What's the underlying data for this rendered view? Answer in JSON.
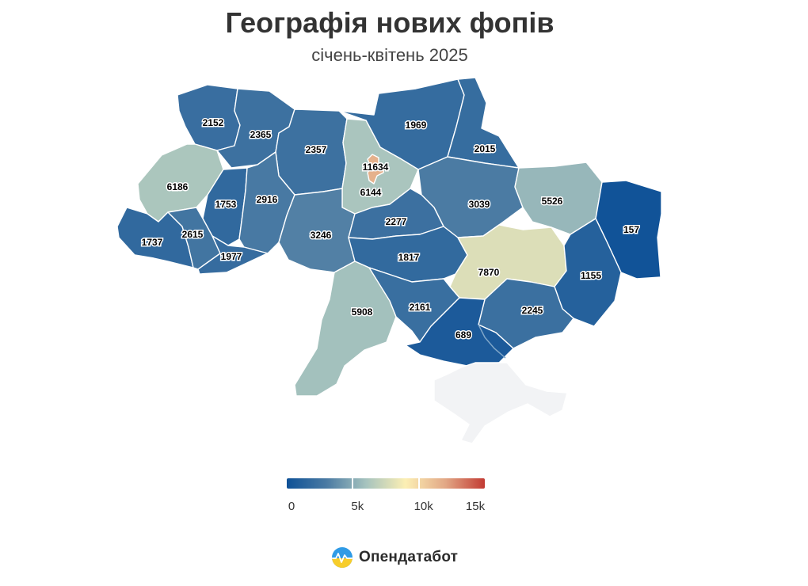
{
  "title": "Географія нових фопів",
  "subtitle": "січень-квітень 2025",
  "map": {
    "color_scale": {
      "min": 0,
      "max": 15000,
      "stops": [
        "#0e5197",
        "#4a7aa3",
        "#a6c3be",
        "#fcefb4",
        "#e2a886",
        "#c23b33"
      ],
      "tick_values": [
        0,
        5000,
        10000,
        15000
      ],
      "tick_labels": [
        "0",
        "5k",
        "10k",
        "15k"
      ]
    },
    "regions": [
      {
        "name": "volyn",
        "value": 2152
      },
      {
        "name": "rivne",
        "value": 2365
      },
      {
        "name": "zhytomyr",
        "value": 2357
      },
      {
        "name": "chernihiv",
        "value": 1969
      },
      {
        "name": "sumy",
        "value": 2015
      },
      {
        "name": "lviv",
        "value": 6186
      },
      {
        "name": "ternopil",
        "value": 1753
      },
      {
        "name": "khmelnytskyi",
        "value": 2916
      },
      {
        "name": "kyiv-city",
        "value": 11634
      },
      {
        "name": "kyiv-oblast",
        "value": 6144
      },
      {
        "name": "poltava",
        "value": 3039
      },
      {
        "name": "kharkiv",
        "value": 5526
      },
      {
        "name": "luhansk",
        "value": 157
      },
      {
        "name": "zakarpattia",
        "value": 1737
      },
      {
        "name": "ivano-frankivsk",
        "value": 2615
      },
      {
        "name": "chernivtsi",
        "value": 1977
      },
      {
        "name": "vinnytsia",
        "value": 3246
      },
      {
        "name": "cherkasy",
        "value": 2277
      },
      {
        "name": "kirovohrad",
        "value": 1817
      },
      {
        "name": "dnipropetrovsk",
        "value": 7870
      },
      {
        "name": "donetsk",
        "value": 1155
      },
      {
        "name": "odesa",
        "value": 5908
      },
      {
        "name": "mykolaiv",
        "value": 2161
      },
      {
        "name": "zaporizhzhia",
        "value": 2245
      },
      {
        "name": "kherson",
        "value": 689
      },
      {
        "name": "crimea",
        "value": null
      }
    ],
    "no_data_color": "#f2f3f5"
  },
  "brand": {
    "name": "Опендатабот",
    "logo_icon": "opendatabot-logo-icon"
  }
}
